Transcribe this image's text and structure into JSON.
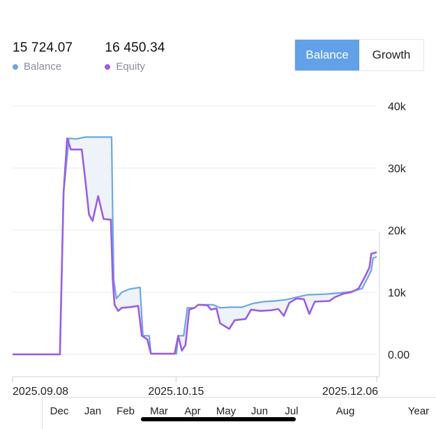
{
  "summary": {
    "balance_value": "15 724.07",
    "balance_label": "Balance",
    "equity_value": "16 450.34",
    "equity_label": "Equity"
  },
  "toggle": {
    "balance_label": "Balance",
    "growth_label": "Growth",
    "selected": "Balance"
  },
  "colors": {
    "balance": "#6ea6e0",
    "equity": "#9b5ee0",
    "fill": "#eef3fa",
    "grid": "#e8eaed",
    "toggle_active": "#62a0e8"
  },
  "chart_data": {
    "type": "line",
    "title": "",
    "xlabel": "",
    "ylabel": "",
    "ylim": [
      0,
      40000
    ],
    "yticks": [
      "0.00",
      "10k",
      "20k",
      "30k",
      "40k"
    ],
    "x_labels": [
      "2025.09.08",
      "2025.10.15",
      "2025.12.06"
    ],
    "grid": true,
    "legend": "top-left",
    "series": [
      {
        "name": "Balance",
        "points": [
          [
            0,
            0
          ],
          [
            0.07,
            0
          ],
          [
            0.13,
            0
          ],
          [
            0.14,
            26000
          ],
          [
            0.155,
            34800
          ],
          [
            0.175,
            34700
          ],
          [
            0.2,
            35000
          ],
          [
            0.26,
            35000
          ],
          [
            0.272,
            35000
          ],
          [
            0.275,
            22000
          ],
          [
            0.278,
            12000
          ],
          [
            0.285,
            9000
          ],
          [
            0.3,
            10000
          ],
          [
            0.32,
            10500
          ],
          [
            0.35,
            10800
          ],
          [
            0.358,
            3000
          ],
          [
            0.375,
            3000
          ],
          [
            0.38,
            100
          ],
          [
            0.45,
            100
          ],
          [
            0.455,
            3000
          ],
          [
            0.47,
            3000
          ],
          [
            0.48,
            7500
          ],
          [
            0.5,
            7500
          ],
          [
            0.51,
            8000
          ],
          [
            0.55,
            8000
          ],
          [
            0.57,
            7500
          ],
          [
            0.6,
            7600
          ],
          [
            0.63,
            7600
          ],
          [
            0.66,
            8200
          ],
          [
            0.69,
            8500
          ],
          [
            0.72,
            8600
          ],
          [
            0.75,
            8800
          ],
          [
            0.78,
            9200
          ],
          [
            0.81,
            9600
          ],
          [
            0.86,
            9700
          ],
          [
            0.9,
            9900
          ],
          [
            0.93,
            10100
          ],
          [
            0.96,
            10600
          ],
          [
            0.985,
            13500
          ],
          [
            0.99,
            15500
          ],
          [
            1.0,
            15724
          ]
        ]
      },
      {
        "name": "Equity",
        "points": [
          [
            0,
            0
          ],
          [
            0.07,
            0
          ],
          [
            0.13,
            0
          ],
          [
            0.14,
            26000
          ],
          [
            0.15,
            34800
          ],
          [
            0.16,
            33000
          ],
          [
            0.19,
            33000
          ],
          [
            0.2,
            28000
          ],
          [
            0.21,
            22500
          ],
          [
            0.22,
            21500
          ],
          [
            0.235,
            25500
          ],
          [
            0.25,
            21800
          ],
          [
            0.27,
            21700
          ],
          [
            0.275,
            12000
          ],
          [
            0.28,
            8000
          ],
          [
            0.29,
            7000
          ],
          [
            0.3,
            7500
          ],
          [
            0.32,
            7600
          ],
          [
            0.345,
            7800
          ],
          [
            0.355,
            3000
          ],
          [
            0.37,
            2400
          ],
          [
            0.38,
            100
          ],
          [
            0.445,
            100
          ],
          [
            0.455,
            3000
          ],
          [
            0.465,
            600
          ],
          [
            0.475,
            1500
          ],
          [
            0.485,
            7200
          ],
          [
            0.5,
            7500
          ],
          [
            0.51,
            8000
          ],
          [
            0.535,
            7900
          ],
          [
            0.545,
            7200
          ],
          [
            0.56,
            7400
          ],
          [
            0.57,
            5000
          ],
          [
            0.595,
            4100
          ],
          [
            0.61,
            5500
          ],
          [
            0.64,
            5700
          ],
          [
            0.655,
            7200
          ],
          [
            0.68,
            7000
          ],
          [
            0.71,
            7100
          ],
          [
            0.73,
            7300
          ],
          [
            0.745,
            6200
          ],
          [
            0.76,
            8300
          ],
          [
            0.78,
            9000
          ],
          [
            0.8,
            8900
          ],
          [
            0.815,
            6500
          ],
          [
            0.83,
            8500
          ],
          [
            0.87,
            8600
          ],
          [
            0.885,
            9200
          ],
          [
            0.91,
            9800
          ],
          [
            0.93,
            10000
          ],
          [
            0.95,
            10600
          ],
          [
            0.965,
            12200
          ],
          [
            0.98,
            14000
          ],
          [
            0.985,
            16200
          ],
          [
            1.0,
            16450
          ]
        ]
      }
    ]
  },
  "period": {
    "months": [
      "Dec",
      "Jan",
      "Feb",
      "Mar",
      "Apr",
      "May",
      "Jun",
      "Jul",
      "Aug"
    ],
    "year_label": "Year"
  }
}
